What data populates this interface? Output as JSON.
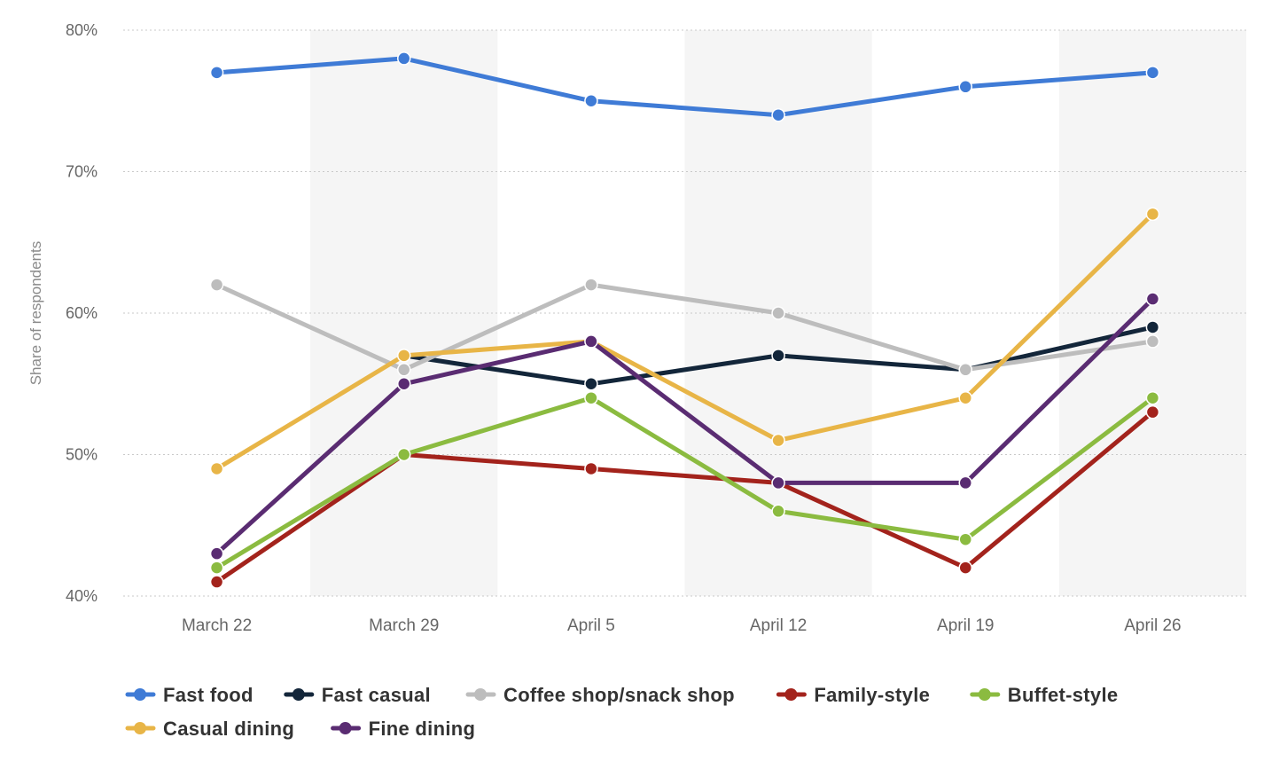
{
  "chart_data": {
    "type": "line",
    "title": "",
    "xlabel": "",
    "ylabel": "Share of respondents",
    "categories": [
      "March 22",
      "March 29",
      "April 5",
      "April 12",
      "April 19",
      "April 26"
    ],
    "ylim": [
      40,
      80
    ],
    "yticks": [
      {
        "value": 40,
        "label": "40%"
      },
      {
        "value": 50,
        "label": "50%"
      },
      {
        "value": 60,
        "label": "60%"
      },
      {
        "value": 70,
        "label": "70%"
      },
      {
        "value": 80,
        "label": "80%"
      }
    ],
    "grid": true,
    "alternating_column_bands": true,
    "legend_position": "bottom-left",
    "series": [
      {
        "name": "Fast food",
        "color": "#3f7bd6",
        "values": [
          77,
          78,
          75,
          74,
          76,
          77
        ]
      },
      {
        "name": "Fast casual",
        "color": "#13263a",
        "values": [
          null,
          57,
          55,
          57,
          56,
          59
        ]
      },
      {
        "name": "Coffee shop/snack shop",
        "color": "#bdbdbd",
        "values": [
          62,
          56,
          62,
          60,
          56,
          58
        ]
      },
      {
        "name": "Family-style",
        "color": "#a3231c",
        "values": [
          41,
          50,
          49,
          48,
          42,
          53
        ]
      },
      {
        "name": "Buffet-style",
        "color": "#8bbb40",
        "values": [
          42,
          50,
          54,
          46,
          44,
          54
        ]
      },
      {
        "name": "Casual dining",
        "color": "#e8b547",
        "values": [
          49,
          57,
          58,
          51,
          54,
          67
        ]
      },
      {
        "name": "Fine dining",
        "color": "#5a2c72",
        "values": [
          43,
          55,
          58,
          48,
          48,
          61
        ]
      }
    ]
  }
}
